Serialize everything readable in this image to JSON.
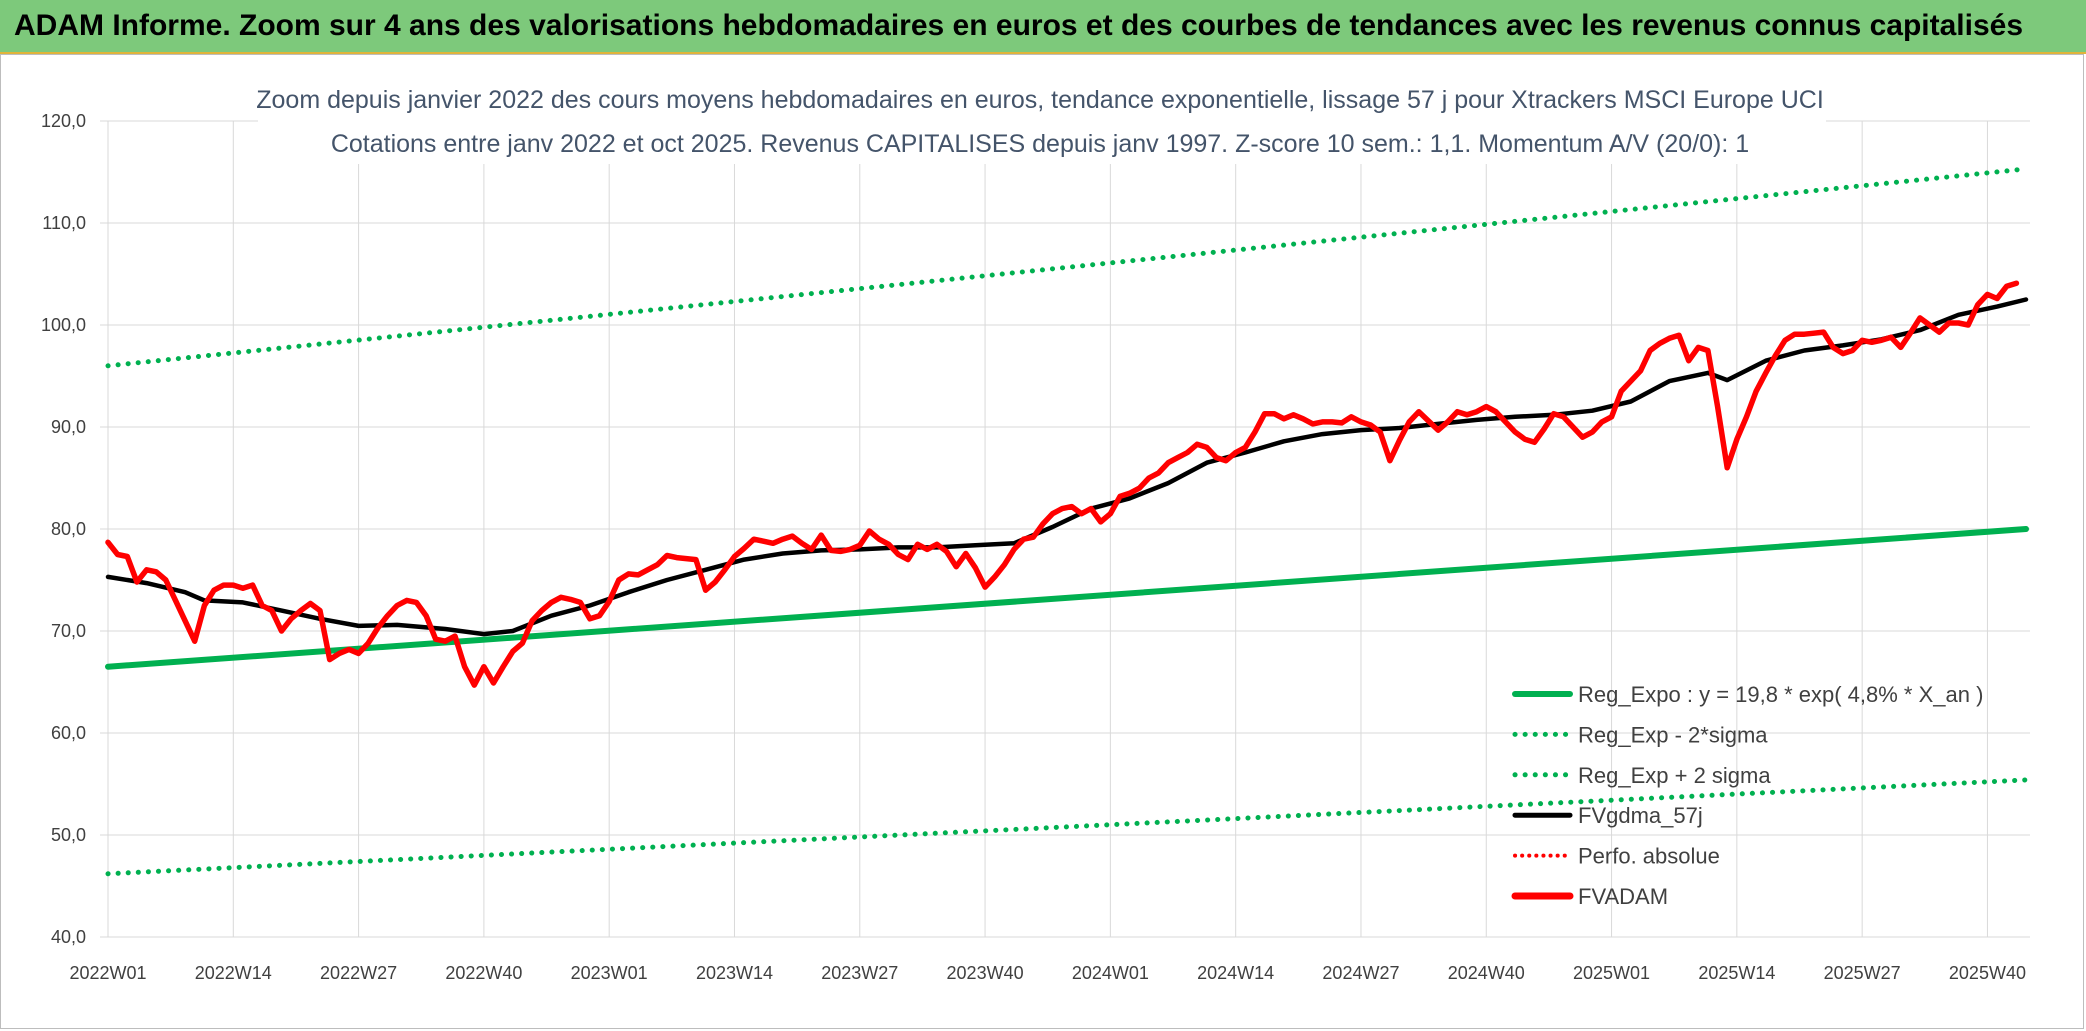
{
  "banner": {
    "title": "ADAM Informe. Zoom sur 4 ans des valorisations hebdomadaires en euros et des courbes de tendances avec les revenus connus capitalisés"
  },
  "colors": {
    "banner_bg": "#7dc97b",
    "reg_expo": "#00b050",
    "fvgdma": "#000000",
    "fvadam": "#ff0000",
    "perfo": "#ff0000"
  },
  "chart_data": {
    "type": "line",
    "title_line1": "Zoom depuis janvier 2022 des cours moyens hebdomadaires en euros, tendance exponentielle, lissage 57 j pour Xtrackers MSCI Europe UCI",
    "title_line2": "Cotations entre janv 2022 et oct 2025. Revenus CAPITALISES depuis janv 1997. Z-score 10 sem.: 1,1. Momentum A/V (20/0): 1",
    "ylim": [
      40,
      120
    ],
    "yticks": [
      "40,0",
      "50,0",
      "60,0",
      "70,0",
      "80,0",
      "90,0",
      "100,0",
      "110,0",
      "120,0"
    ],
    "x_tick_labels": [
      "2022W01",
      "2022W14",
      "2022W27",
      "2022W40",
      "2023W01",
      "2023W14",
      "2023W27",
      "2023W40",
      "2024W01",
      "2024W14",
      "2024W27",
      "2024W40",
      "2025W01",
      "2025W14",
      "2025W27",
      "2025W40"
    ],
    "x_tick_weeks": [
      0,
      13,
      26,
      39,
      52,
      65,
      78,
      91,
      104,
      117,
      130,
      143,
      156,
      169,
      182,
      195
    ],
    "x_range_weeks": [
      0,
      199
    ],
    "grid": true,
    "legend_position": "bottom-right",
    "legend": [
      {
        "key": "reg_expo",
        "label": "Reg_Expo : y = 19,8 * exp( 4,8% *  X_an )"
      },
      {
        "key": "reg_low",
        "label": "Reg_Exp - 2*sigma"
      },
      {
        "key": "reg_high",
        "label": "Reg_Exp + 2 sigma"
      },
      {
        "key": "fvgdma",
        "label": "FVgdma_57j"
      },
      {
        "key": "perfo",
        "label": "Perfo. absolue"
      },
      {
        "key": "fvadam",
        "label": "FVADAM"
      }
    ],
    "series": {
      "reg_expo": {
        "start": [
          0,
          66.5
        ],
        "end": [
          199,
          80.0
        ]
      },
      "reg_high": {
        "start": [
          0,
          96.0
        ],
        "end": [
          199,
          115.3
        ]
      },
      "reg_low": {
        "start": [
          0,
          46.2
        ],
        "end": [
          199,
          55.4
        ]
      },
      "fvgdma": [
        [
          0,
          75.3
        ],
        [
          4,
          74.7
        ],
        [
          8,
          73.8
        ],
        [
          10,
          73.0
        ],
        [
          14,
          72.8
        ],
        [
          18,
          72.0
        ],
        [
          22,
          71.2
        ],
        [
          26,
          70.5
        ],
        [
          30,
          70.6
        ],
        [
          35,
          70.2
        ],
        [
          39,
          69.7
        ],
        [
          42,
          70.0
        ],
        [
          46,
          71.5
        ],
        [
          50,
          72.5
        ],
        [
          54,
          73.8
        ],
        [
          58,
          75.0
        ],
        [
          62,
          76.0
        ],
        [
          66,
          77.0
        ],
        [
          70,
          77.6
        ],
        [
          74,
          77.9
        ],
        [
          78,
          78.0
        ],
        [
          82,
          78.2
        ],
        [
          86,
          78.2
        ],
        [
          90,
          78.4
        ],
        [
          94,
          78.6
        ],
        [
          98,
          80.2
        ],
        [
          102,
          82.0
        ],
        [
          106,
          83.0
        ],
        [
          110,
          84.5
        ],
        [
          114,
          86.5
        ],
        [
          118,
          87.5
        ],
        [
          122,
          88.6
        ],
        [
          126,
          89.3
        ],
        [
          130,
          89.7
        ],
        [
          134,
          89.9
        ],
        [
          138,
          90.3
        ],
        [
          142,
          90.7
        ],
        [
          146,
          91.0
        ],
        [
          150,
          91.2
        ],
        [
          154,
          91.6
        ],
        [
          158,
          92.5
        ],
        [
          162,
          94.5
        ],
        [
          166,
          95.3
        ],
        [
          168,
          94.6
        ],
        [
          172,
          96.5
        ],
        [
          176,
          97.5
        ],
        [
          180,
          98.0
        ],
        [
          184,
          98.6
        ],
        [
          188,
          99.5
        ],
        [
          192,
          101.0
        ],
        [
          196,
          101.8
        ],
        [
          199,
          102.5
        ]
      ],
      "fvadam": [
        [
          0,
          78.7
        ],
        [
          1,
          77.5
        ],
        [
          2,
          77.3
        ],
        [
          3,
          74.8
        ],
        [
          4,
          76.0
        ],
        [
          5,
          75.8
        ],
        [
          6,
          75.0
        ],
        [
          7,
          73.0
        ],
        [
          8,
          71.0
        ],
        [
          9,
          69.0
        ],
        [
          10,
          72.5
        ],
        [
          11,
          74.0
        ],
        [
          12,
          74.5
        ],
        [
          13,
          74.5
        ],
        [
          14,
          74.2
        ],
        [
          15,
          74.5
        ],
        [
          16,
          72.5
        ],
        [
          17,
          72.0
        ],
        [
          18,
          70.0
        ],
        [
          19,
          71.2
        ],
        [
          20,
          72.0
        ],
        [
          21,
          72.7
        ],
        [
          22,
          72.0
        ],
        [
          23,
          67.2
        ],
        [
          24,
          67.8
        ],
        [
          25,
          68.2
        ],
        [
          26,
          67.8
        ],
        [
          27,
          68.8
        ],
        [
          28,
          70.3
        ],
        [
          29,
          71.5
        ],
        [
          30,
          72.5
        ],
        [
          31,
          73.0
        ],
        [
          32,
          72.8
        ],
        [
          33,
          71.5
        ],
        [
          34,
          69.2
        ],
        [
          35,
          69.0
        ],
        [
          36,
          69.5
        ],
        [
          37,
          66.5
        ],
        [
          38,
          64.7
        ],
        [
          39,
          66.5
        ],
        [
          40,
          64.9
        ],
        [
          41,
          66.5
        ],
        [
          42,
          68.0
        ],
        [
          43,
          68.8
        ],
        [
          44,
          71.0
        ],
        [
          45,
          72.0
        ],
        [
          46,
          72.8
        ],
        [
          47,
          73.3
        ],
        [
          48,
          73.1
        ],
        [
          49,
          72.8
        ],
        [
          50,
          71.2
        ],
        [
          51,
          71.5
        ],
        [
          52,
          72.9
        ],
        [
          53,
          75.0
        ],
        [
          54,
          75.6
        ],
        [
          55,
          75.5
        ],
        [
          56,
          76.0
        ],
        [
          57,
          76.5
        ],
        [
          58,
          77.4
        ],
        [
          59,
          77.2
        ],
        [
          60,
          77.1
        ],
        [
          61,
          77.0
        ],
        [
          62,
          74.0
        ],
        [
          63,
          74.8
        ],
        [
          64,
          76.0
        ],
        [
          65,
          77.3
        ],
        [
          66,
          78.1
        ],
        [
          67,
          79.0
        ],
        [
          68,
          78.8
        ],
        [
          69,
          78.6
        ],
        [
          70,
          79.0
        ],
        [
          71,
          79.3
        ],
        [
          72,
          78.6
        ],
        [
          73,
          78.0
        ],
        [
          74,
          79.4
        ],
        [
          75,
          77.9
        ],
        [
          76,
          77.8
        ],
        [
          77,
          78.0
        ],
        [
          78,
          78.4
        ],
        [
          79,
          79.8
        ],
        [
          80,
          79.0
        ],
        [
          81,
          78.5
        ],
        [
          82,
          77.5
        ],
        [
          83,
          77.0
        ],
        [
          84,
          78.5
        ],
        [
          85,
          78.0
        ],
        [
          86,
          78.5
        ],
        [
          87,
          77.8
        ],
        [
          88,
          76.3
        ],
        [
          89,
          77.6
        ],
        [
          90,
          76.2
        ],
        [
          91,
          74.3
        ],
        [
          92,
          75.3
        ],
        [
          93,
          76.5
        ],
        [
          94,
          78.0
        ],
        [
          95,
          79.0
        ],
        [
          96,
          79.2
        ],
        [
          97,
          80.5
        ],
        [
          98,
          81.5
        ],
        [
          99,
          82.0
        ],
        [
          100,
          82.2
        ],
        [
          101,
          81.5
        ],
        [
          102,
          82.0
        ],
        [
          103,
          80.7
        ],
        [
          104,
          81.5
        ],
        [
          105,
          83.2
        ],
        [
          106,
          83.5
        ],
        [
          107,
          84.0
        ],
        [
          108,
          85.0
        ],
        [
          109,
          85.5
        ],
        [
          110,
          86.5
        ],
        [
          111,
          87.0
        ],
        [
          112,
          87.5
        ],
        [
          113,
          88.3
        ],
        [
          114,
          88.0
        ],
        [
          115,
          87.0
        ],
        [
          116,
          86.7
        ],
        [
          117,
          87.5
        ],
        [
          118,
          88.0
        ],
        [
          119,
          89.5
        ],
        [
          120,
          91.3
        ],
        [
          121,
          91.3
        ],
        [
          122,
          90.8
        ],
        [
          123,
          91.2
        ],
        [
          124,
          90.8
        ],
        [
          125,
          90.3
        ],
        [
          126,
          90.5
        ],
        [
          127,
          90.5
        ],
        [
          128,
          90.4
        ],
        [
          129,
          91.0
        ],
        [
          130,
          90.5
        ],
        [
          131,
          90.2
        ],
        [
          132,
          89.5
        ],
        [
          133,
          86.7
        ],
        [
          134,
          88.7
        ],
        [
          135,
          90.5
        ],
        [
          136,
          91.5
        ],
        [
          137,
          90.6
        ],
        [
          138,
          89.7
        ],
        [
          139,
          90.5
        ],
        [
          140,
          91.5
        ],
        [
          141,
          91.2
        ],
        [
          142,
          91.5
        ],
        [
          143,
          92.0
        ],
        [
          144,
          91.5
        ],
        [
          145,
          90.5
        ],
        [
          146,
          89.5
        ],
        [
          147,
          88.8
        ],
        [
          148,
          88.5
        ],
        [
          149,
          89.8
        ],
        [
          150,
          91.3
        ],
        [
          151,
          91.0
        ],
        [
          152,
          90.0
        ],
        [
          153,
          89.0
        ],
        [
          154,
          89.5
        ],
        [
          155,
          90.5
        ],
        [
          156,
          91.0
        ],
        [
          157,
          93.5
        ],
        [
          158,
          94.5
        ],
        [
          159,
          95.5
        ],
        [
          160,
          97.5
        ],
        [
          161,
          98.2
        ],
        [
          162,
          98.7
        ],
        [
          163,
          99.0
        ],
        [
          164,
          96.5
        ],
        [
          165,
          97.8
        ],
        [
          166,
          97.5
        ],
        [
          167,
          92.0
        ],
        [
          168,
          86.0
        ],
        [
          169,
          88.8
        ],
        [
          170,
          91.0
        ],
        [
          171,
          93.5
        ],
        [
          172,
          95.3
        ],
        [
          173,
          97.0
        ],
        [
          174,
          98.5
        ],
        [
          175,
          99.1
        ],
        [
          176,
          99.1
        ],
        [
          177,
          99.2
        ],
        [
          178,
          99.3
        ],
        [
          179,
          97.8
        ],
        [
          180,
          97.2
        ],
        [
          181,
          97.5
        ],
        [
          182,
          98.5
        ],
        [
          183,
          98.3
        ],
        [
          184,
          98.5
        ],
        [
          185,
          98.8
        ],
        [
          186,
          97.8
        ],
        [
          187,
          99.2
        ],
        [
          188,
          100.7
        ],
        [
          189,
          100.0
        ],
        [
          190,
          99.3
        ],
        [
          191,
          100.2
        ],
        [
          192,
          100.2
        ],
        [
          193,
          100.0
        ],
        [
          194,
          102.0
        ],
        [
          195,
          103.0
        ],
        [
          196,
          102.6
        ],
        [
          197,
          103.8
        ],
        [
          198,
          104.1
        ]
      ]
    }
  }
}
